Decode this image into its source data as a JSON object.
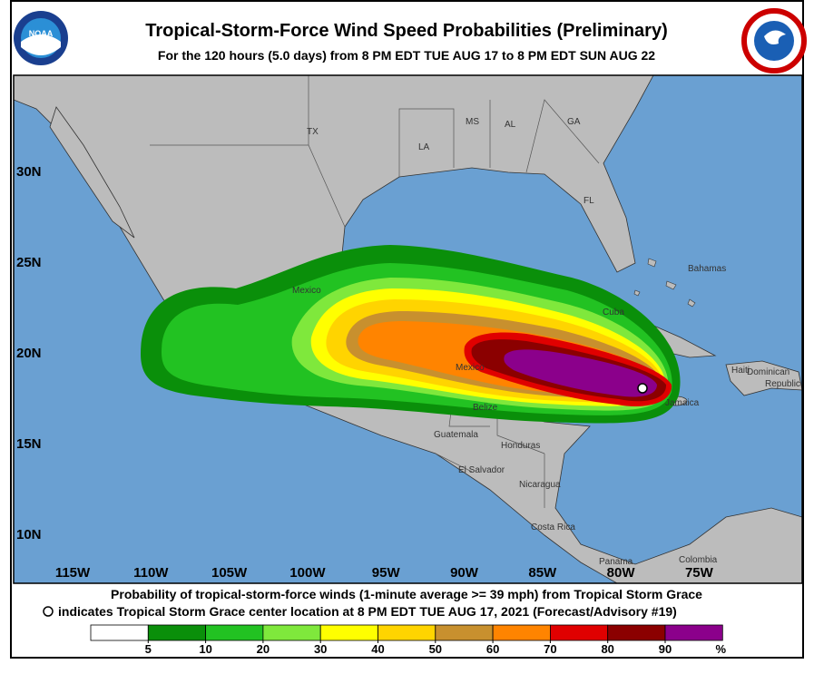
{
  "header": {
    "title": "Tropical-Storm-Force Wind Speed Probabilities (Preliminary)",
    "subtitle": "For the 120 hours (5.0 days) from 8 PM EDT TUE AUG 17 to 8 PM EDT SUN AUG 22",
    "logo_left": "NOAA"
  },
  "map": {
    "lat_labels": [
      "30N",
      "25N",
      "20N",
      "15N",
      "10N"
    ],
    "lon_labels": [
      "115W",
      "110W",
      "105W",
      "100W",
      "95W",
      "90W",
      "85W",
      "80W",
      "75W"
    ],
    "place_labels": [
      "TX",
      "MS",
      "AL",
      "GA",
      "LA",
      "FL",
      "Bahamas",
      "Mexico",
      "Mexico",
      "Cuba",
      "Haiti",
      "Dominican",
      "Republic",
      "Jamaica",
      "Belize",
      "Guatemala",
      "Honduras",
      "El Salvador",
      "Nicaragua",
      "Costa Rica",
      "Panama",
      "Colombia"
    ]
  },
  "legend": {
    "line1": "Probability of tropical-storm-force winds (1-minute average >= 39 mph) from Tropical Storm Grace",
    "line2": "indicates Tropical Storm Grace center location at 8 PM EDT TUE AUG 17, 2021 (Forecast/Advisory #19)",
    "scale": {
      "values": [
        5,
        10,
        20,
        30,
        40,
        50,
        60,
        70,
        80,
        90
      ],
      "unit": "%",
      "colors": [
        "#ffffff",
        "#0a8f0a",
        "#22c222",
        "#7fe83c",
        "#ffff00",
        "#ffd400",
        "#c8902e",
        "#ff8400",
        "#e00000",
        "#8b0000",
        "#8b008b"
      ]
    }
  }
}
